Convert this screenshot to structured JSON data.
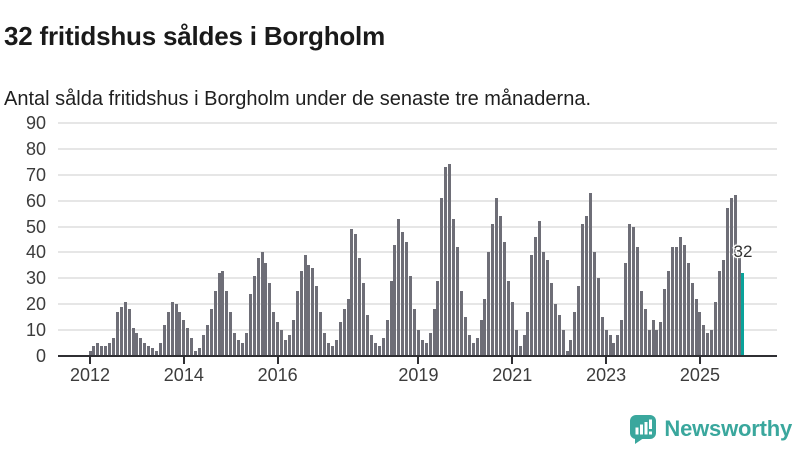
{
  "title": "32 fritidshus såldes i Borgholm",
  "subtitle": "Antal sålda fritidshus i Borgholm under de senaste tre månaderna.",
  "branding": {
    "wordmark": "Newsworthy",
    "icon": "newsworthy-speech-bubble-chart-icon",
    "color": "#3aa79d"
  },
  "colors": {
    "bar": "#6e6e77",
    "highlight": "#0aa29a",
    "gridline": "#e6e6e6",
    "axis": "#2f2f33",
    "tick_label": "#3c3c3c",
    "title_text": "#1a1a1a"
  },
  "chart_data": {
    "type": "bar",
    "title": "32 fritidshus såldes i Borgholm",
    "subtitle": "Antal sålda fritidshus i Borgholm under de senaste tre månaderna.",
    "ylim": [
      0,
      90
    ],
    "y_ticks": [
      0,
      10,
      20,
      30,
      40,
      50,
      60,
      70,
      80,
      90
    ],
    "x_tick_years": [
      2012,
      2014,
      2016,
      2019,
      2021,
      2023,
      2025
    ],
    "grid": "horizontal",
    "legend": "none",
    "series": [
      {
        "year": 2012,
        "values": [
          2,
          4,
          5,
          4,
          4,
          5,
          7,
          17,
          19,
          21,
          18,
          11
        ]
      },
      {
        "year": 2013,
        "values": [
          9,
          7,
          5,
          4,
          3,
          2,
          5,
          12,
          17,
          21,
          20,
          17
        ]
      },
      {
        "year": 2014,
        "values": [
          14,
          11,
          7,
          2,
          3,
          8,
          12,
          18,
          25,
          32,
          33,
          25
        ]
      },
      {
        "year": 2015,
        "values": [
          17,
          9,
          6,
          5,
          9,
          24,
          31,
          38,
          40,
          36,
          28,
          17
        ]
      },
      {
        "year": 2016,
        "values": [
          13,
          10,
          6,
          8,
          14,
          25,
          33,
          39,
          35,
          34,
          27,
          17
        ]
      },
      {
        "year": 2017,
        "values": [
          9,
          5,
          4,
          6,
          13,
          18,
          22,
          49,
          47,
          38,
          28,
          16
        ]
      },
      {
        "year": 2018,
        "values": [
          8,
          5,
          4,
          7,
          14,
          29,
          43,
          53,
          48,
          44,
          31,
          18
        ]
      },
      {
        "year": 2019,
        "values": [
          10,
          6,
          5,
          9,
          18,
          29,
          61,
          73,
          74,
          53,
          42,
          25
        ]
      },
      {
        "year": 2020,
        "values": [
          15,
          8,
          5,
          7,
          14,
          22,
          40,
          51,
          61,
          54,
          44,
          29
        ]
      },
      {
        "year": 2021,
        "values": [
          21,
          10,
          4,
          8,
          17,
          39,
          46,
          52,
          40,
          37,
          28,
          20
        ]
      },
      {
        "year": 2022,
        "values": [
          16,
          10,
          2,
          6,
          17,
          27,
          51,
          54,
          63,
          40,
          30,
          15
        ]
      },
      {
        "year": 2023,
        "values": [
          10,
          8,
          5,
          8,
          14,
          36,
          51,
          50,
          42,
          25,
          18,
          10
        ]
      },
      {
        "year": 2024,
        "values": [
          14,
          10,
          13,
          26,
          33,
          42,
          42,
          46,
          43,
          36,
          28,
          22
        ]
      },
      {
        "year": 2025,
        "values": [
          17,
          12,
          9,
          10,
          21,
          33,
          37,
          57,
          61,
          62,
          40,
          32
        ]
      }
    ],
    "highlight": {
      "position": "last-bar",
      "value": 32,
      "label": "32",
      "color": "#0aa29a"
    }
  }
}
